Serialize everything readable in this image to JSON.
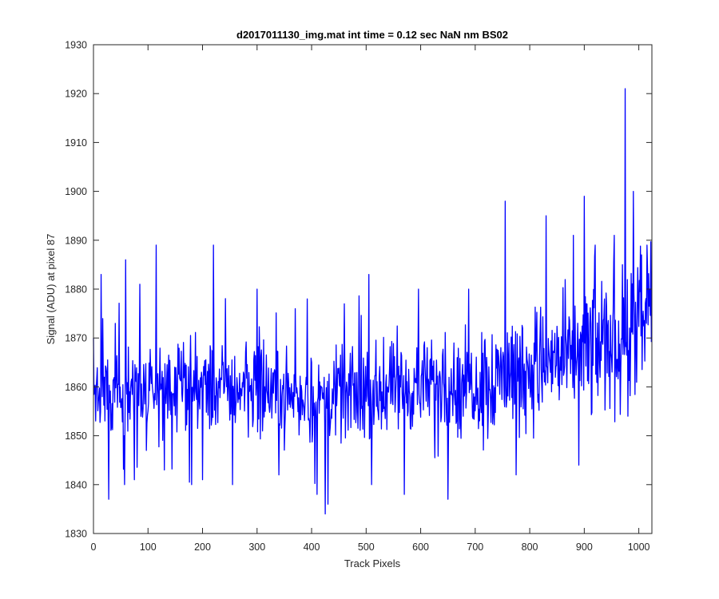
{
  "chart_data": {
    "type": "line",
    "title": "d2017011130_img.mat int time = 0.12 sec  NaN nm BS02",
    "xlabel": "Track Pixels",
    "ylabel": "Signal (ADU) at pixel 87",
    "xlim": [
      0,
      1024
    ],
    "ylim": [
      1830,
      1930
    ],
    "xticks": [
      "0",
      "100",
      "200",
      "300",
      "400",
      "500",
      "600",
      "700",
      "800",
      "900",
      "1000"
    ],
    "yticks": [
      "1830",
      "1840",
      "1850",
      "1860",
      "1870",
      "1880",
      "1890",
      "1900",
      "1910",
      "1920",
      "1930"
    ],
    "grid": false,
    "series": [
      {
        "color": "#0000ff",
        "length": 1024,
        "trend": [
          [
            0,
            1860
          ],
          [
            100,
            1859
          ],
          [
            200,
            1860
          ],
          [
            300,
            1860
          ],
          [
            400,
            1857
          ],
          [
            500,
            1859
          ],
          [
            600,
            1860
          ],
          [
            700,
            1861
          ],
          [
            800,
            1864
          ],
          [
            900,
            1867
          ],
          [
            1000,
            1872
          ],
          [
            1023,
            1875
          ]
        ],
        "spikes": [
          [
            0,
            1870
          ],
          [
            9,
            1857
          ],
          [
            14,
            1883
          ],
          [
            28,
            1837
          ],
          [
            40,
            1873
          ],
          [
            57,
            1840
          ],
          [
            59,
            1886
          ],
          [
            75,
            1841
          ],
          [
            85,
            1881
          ],
          [
            97,
            1847
          ],
          [
            115,
            1889
          ],
          [
            130,
            1843
          ],
          [
            180,
            1840
          ],
          [
            200,
            1841
          ],
          [
            220,
            1889
          ],
          [
            255,
            1840
          ],
          [
            300,
            1880
          ],
          [
            340,
            1842
          ],
          [
            370,
            1876
          ],
          [
            392,
            1878
          ],
          [
            410,
            1838
          ],
          [
            425,
            1834
          ],
          [
            430,
            1836
          ],
          [
            460,
            1877
          ],
          [
            505,
            1883
          ],
          [
            510,
            1840
          ],
          [
            570,
            1838
          ],
          [
            596,
            1880
          ],
          [
            650,
            1837
          ],
          [
            688,
            1880
          ],
          [
            755,
            1898
          ],
          [
            775,
            1842
          ],
          [
            830,
            1895
          ],
          [
            880,
            1891
          ],
          [
            890,
            1844
          ],
          [
            900,
            1899
          ],
          [
            920,
            1889
          ],
          [
            955,
            1891
          ],
          [
            970,
            1885
          ],
          [
            975,
            1921
          ],
          [
            980,
            1854
          ],
          [
            990,
            1900
          ],
          [
            1005,
            1887
          ],
          [
            1015,
            1889
          ]
        ]
      }
    ]
  }
}
